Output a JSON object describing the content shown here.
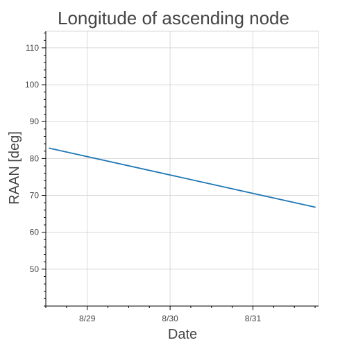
{
  "chart_data": {
    "type": "line",
    "title": "Longitude of ascending node",
    "xlabel": "Date",
    "ylabel": "RAAN [deg]",
    "x_tick_labels": [
      "8/29",
      "8/30",
      "8/31"
    ],
    "y_tick_labels": [
      "50",
      "60",
      "70",
      "80",
      "90",
      "100",
      "110"
    ],
    "x_ticks": [
      "8/29",
      "8/30",
      "8/31"
    ],
    "y_ticks": [
      50,
      60,
      70,
      80,
      90,
      100,
      110
    ],
    "xlim": [
      "8/28 12:00",
      "8/31 19:00"
    ],
    "ylim": [
      40,
      114.5
    ],
    "grid": true,
    "series": [
      {
        "color": "#1f77b4",
        "x": [
          "8/28 13:00",
          "8/31 18:00"
        ],
        "y": [
          82.8,
          66.8
        ]
      }
    ]
  }
}
